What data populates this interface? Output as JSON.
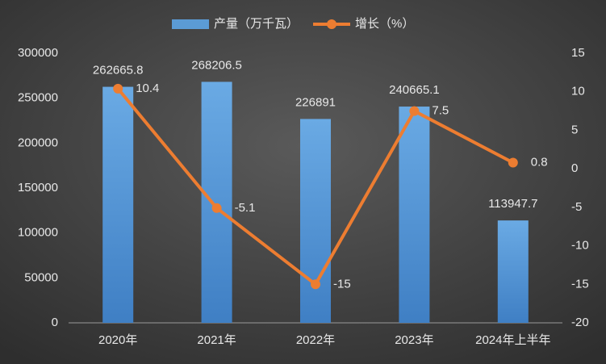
{
  "chart_data": {
    "type": "bar",
    "categories": [
      "2020年",
      "2021年",
      "2022年",
      "2023年",
      "2024年上半年"
    ],
    "series": [
      {
        "name": "产量（万千瓦）",
        "color": "#5b9bd5",
        "type": "bar",
        "axis": "y",
        "values": [
          262665.8,
          268206.5,
          226891,
          240665.1,
          113947.7
        ]
      },
      {
        "name": "增长（%）",
        "color": "#ed7d31",
        "type": "line",
        "axis": "y2",
        "values": [
          10.4,
          -5.1,
          -15,
          7.5,
          0.8
        ]
      }
    ],
    "ylim": [
      0,
      300000
    ],
    "yticks": [
      0,
      50000,
      100000,
      150000,
      200000,
      250000,
      300000
    ],
    "y2lim": [
      -20,
      15
    ],
    "y2ticks": [
      -20,
      -15,
      -10,
      -5,
      0,
      5,
      10,
      15
    ],
    "grid": false,
    "legend": "top"
  }
}
